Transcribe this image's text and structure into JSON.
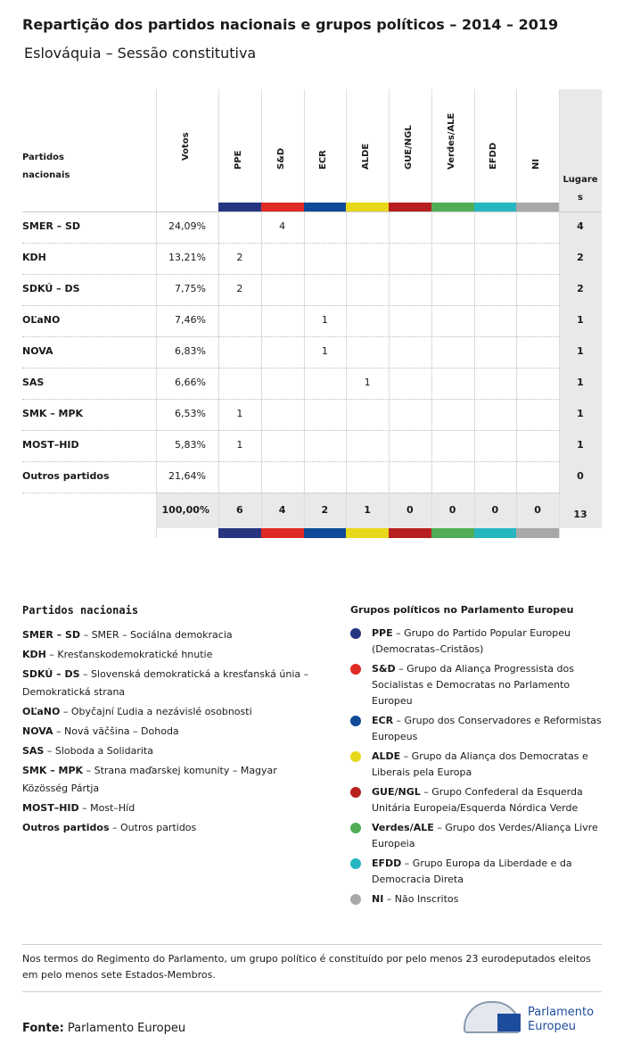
{
  "header": {
    "title": "Repartição dos partidos nacionais e grupos políticos – 2014 – 2019",
    "subtitle": "Eslováquia – Sessão constitutiva"
  },
  "table": {
    "party_header": "Partidos nacionais",
    "votes_header": "Votos",
    "seats_header": "Lugares",
    "groups": [
      {
        "name": "PPE",
        "color": "#263580"
      },
      {
        "name": "S&D",
        "color": "#e02a26"
      },
      {
        "name": "ECR",
        "color": "#0e4a97"
      },
      {
        "name": "ALDE",
        "color": "#e8d81a"
      },
      {
        "name": "GUE/NGL",
        "color": "#b7201f"
      },
      {
        "name": "Verdes/ALE",
        "color": "#50ad56"
      },
      {
        "name": "EFDD",
        "color": "#25b6c0"
      },
      {
        "name": "NI",
        "color": "#a8a8a8"
      }
    ],
    "rows": [
      {
        "party": "SMER – SD",
        "votes": "24,09%",
        "cells": [
          null,
          4,
          null,
          null,
          null,
          null,
          null,
          null
        ],
        "seats": 4
      },
      {
        "party": "KDH",
        "votes": "13,21%",
        "cells": [
          2,
          null,
          null,
          null,
          null,
          null,
          null,
          null
        ],
        "seats": 2
      },
      {
        "party": "SDKÚ – DS",
        "votes": "7,75%",
        "cells": [
          2,
          null,
          null,
          null,
          null,
          null,
          null,
          null
        ],
        "seats": 2
      },
      {
        "party": "OĽaNO",
        "votes": "7,46%",
        "cells": [
          null,
          null,
          1,
          null,
          null,
          null,
          null,
          null
        ],
        "seats": 1
      },
      {
        "party": "NOVA",
        "votes": "6,83%",
        "cells": [
          null,
          null,
          1,
          null,
          null,
          null,
          null,
          null
        ],
        "seats": 1
      },
      {
        "party": "SAS",
        "votes": "6,66%",
        "cells": [
          null,
          null,
          null,
          1,
          null,
          null,
          null,
          null
        ],
        "seats": 1
      },
      {
        "party": "SMK – MPK",
        "votes": "6,53%",
        "cells": [
          1,
          null,
          null,
          null,
          null,
          null,
          null,
          null
        ],
        "seats": 1
      },
      {
        "party": "MOST–HID",
        "votes": "5,83%",
        "cells": [
          1,
          null,
          null,
          null,
          null,
          null,
          null,
          null
        ],
        "seats": 1
      },
      {
        "party": "Outros partidos",
        "votes": "21,64%",
        "cells": [
          null,
          null,
          null,
          null,
          null,
          null,
          null,
          null
        ],
        "seats": 0
      }
    ],
    "total": {
      "votes": "100,00%",
      "cells": [
        6,
        4,
        2,
        1,
        0,
        0,
        0,
        0
      ],
      "seats": 13
    }
  },
  "parties_legend": {
    "title": "Partidos nacionais",
    "items": [
      {
        "abbr": "SMER – SD",
        "desc": " – SMER – Sociálna demokracia"
      },
      {
        "abbr": "KDH",
        "desc": " – Kresťanskodemokratické hnutie"
      },
      {
        "abbr": "SDKÚ – DS",
        "desc": " – Slovenská demokratická a kresťanská únia – Demokratická strana"
      },
      {
        "abbr": "OĽaNO",
        "desc": " – Obyčajní Ľudia a nezávislé osobnosti"
      },
      {
        "abbr": "NOVA",
        "desc": " – Nová väčšina – Dohoda"
      },
      {
        "abbr": "SAS",
        "desc": " – Sloboda a Solidarita"
      },
      {
        "abbr": "SMK – MPK",
        "desc": " – Strana maďarskej komunity – Magyar Közösség Pártja"
      },
      {
        "abbr": "MOST–HID",
        "desc": " – Most–Híd"
      },
      {
        "abbr": "Outros partidos",
        "desc": " – Outros partidos"
      }
    ]
  },
  "groups_legend": {
    "title": "Grupos políticos no Parlamento Europeu",
    "items": [
      {
        "abbr": "PPE",
        "desc": " – Grupo do Partido Popular Europeu (Democratas–Cristãos)"
      },
      {
        "abbr": "S&D",
        "desc": " – Grupo da Aliança Progressista dos Socialistas e Democratas no Parlamento Europeu"
      },
      {
        "abbr": "ECR",
        "desc": " – Grupo dos Conservadores e Reformistas Europeus"
      },
      {
        "abbr": "ALDE",
        "desc": " – Grupo da Aliança dos Democratas e Liberais pela Europa"
      },
      {
        "abbr": "GUE/NGL",
        "desc": " – Grupo Confederal da Esquerda Unitária Europeia/Esquerda Nórdica Verde"
      },
      {
        "abbr": "Verdes/ALE",
        "desc": " – Grupo dos Verdes/Aliança Livre Europeia"
      },
      {
        "abbr": "EFDD",
        "desc": " – Grupo Europa da Liberdade e da Democracia Direta"
      },
      {
        "abbr": "NI",
        "desc": " – Não Inscritos"
      }
    ]
  },
  "note": "Nos termos do Regimento do Parlamento, um grupo político é constituído por pelo menos 23 eurodeputados eleitos em pelo menos sete Estados-Membros.",
  "source": {
    "label": "Fonte:",
    "text": "Parlamento Europeu"
  },
  "logo": "Parlamento Europeu"
}
